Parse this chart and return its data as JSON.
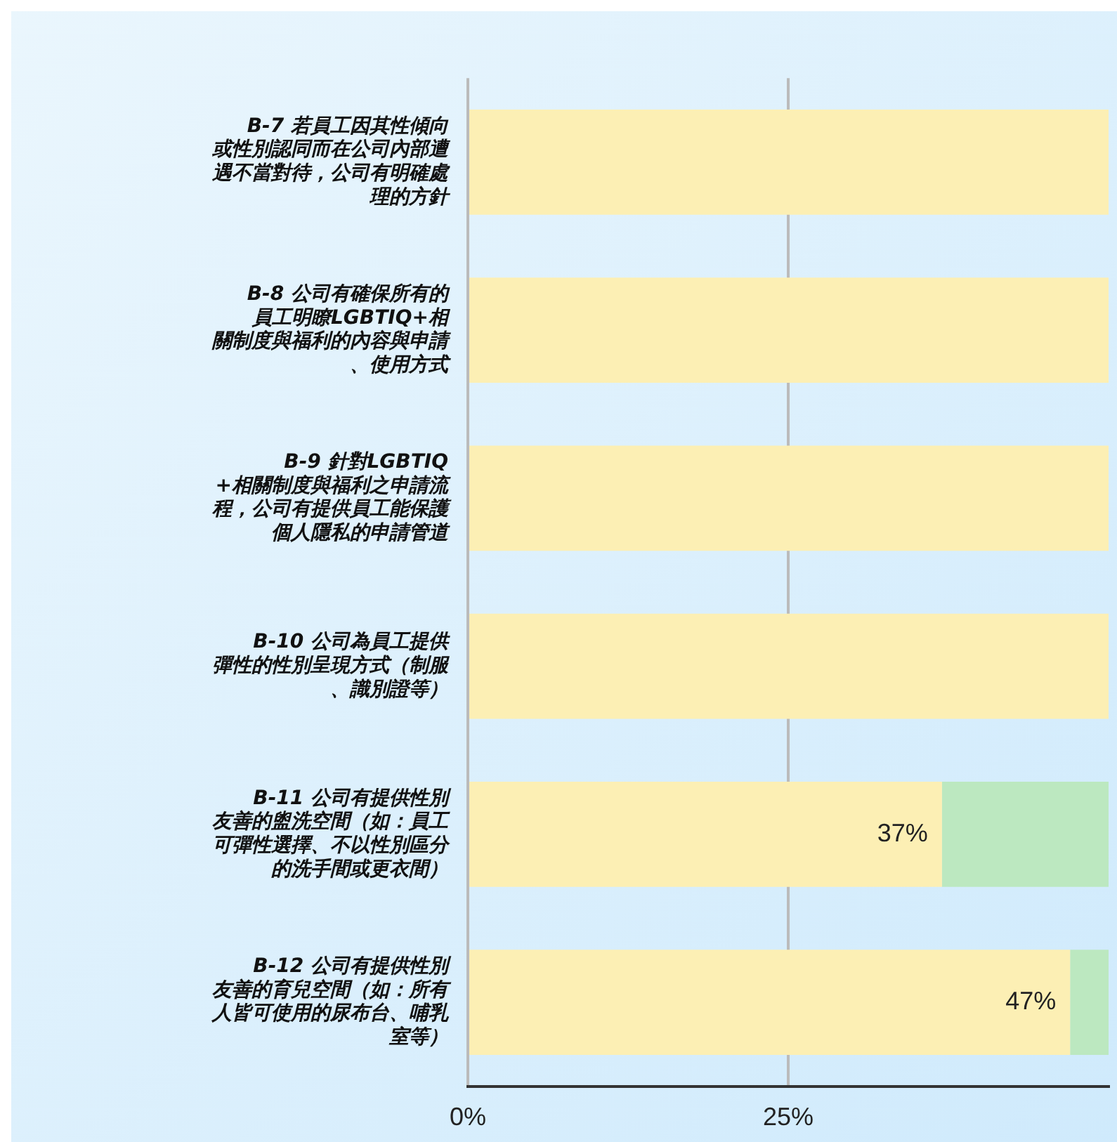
{
  "chart_data": {
    "type": "bar",
    "orientation": "horizontal",
    "stacked": true,
    "grid": "x",
    "legend": false,
    "categories": [
      "B-7 若員工因其性傾向或性別認同而在公司內部遭遇不當對待，公司有明確處理的方針",
      "B-8 公司有確保所有的員工明瞭LGBTIQ+相關制度與福利的內容與申請、使用方式",
      "B-9 針對LGBTIQ+相關制度與福利之申請流程，公司有提供員工能保護個人隱私的申請管道",
      "B-10 公司為員工提供彈性的性別呈現方式（制服、識別證等）",
      "B-11 公司有提供性別友善的盥洗空間（如：員工可彈性選擇、不以性別區分的洗手間或更衣間）",
      "B-12 公司有提供性別友善的育兒空間（如：所有人皆可使用的尿布台、哺乳室等）"
    ],
    "series": [
      {
        "color": "#fcefb4",
        "values": [
          50,
          50,
          50,
          50,
          37,
          47
        ],
        "value_labels": [
          null,
          null,
          null,
          null,
          "37%",
          "47%"
        ]
      },
      {
        "color": "#bce8c0",
        "values": [
          0,
          0,
          0,
          0,
          13,
          3
        ]
      }
    ],
    "xlim": [
      0,
      50
    ],
    "xticks": [
      {
        "value": 0,
        "label": "0%"
      },
      {
        "value": 25,
        "label": "25%"
      }
    ]
  }
}
